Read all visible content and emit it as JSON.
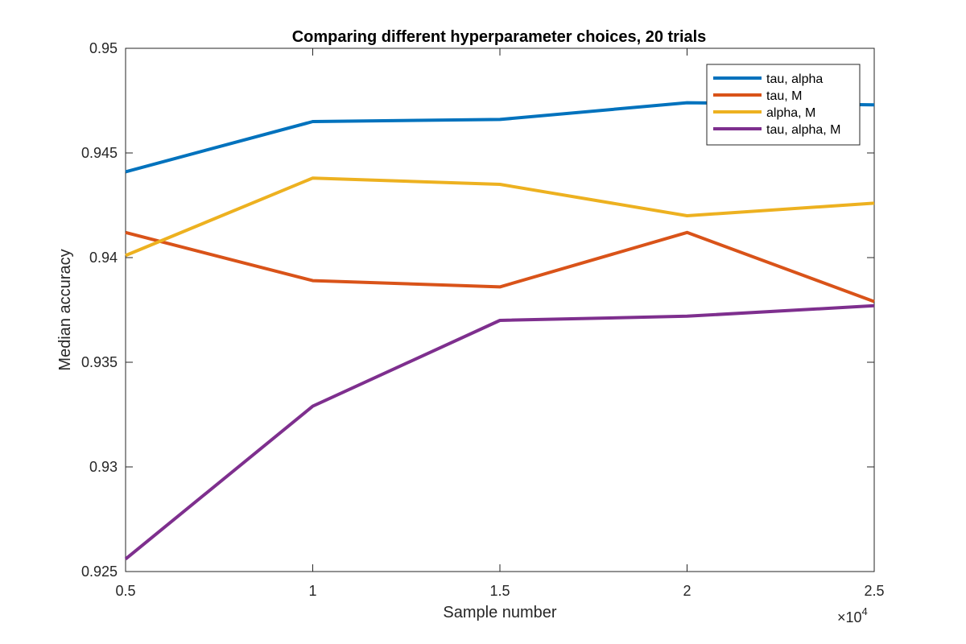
{
  "chart_data": {
    "type": "line",
    "title": "Comparing different hyperparameter choices, 20 trials",
    "xlabel": "Sample number",
    "ylabel": "Median accuracy",
    "x": [
      5000,
      10000,
      15000,
      20000,
      25000
    ],
    "xlim": [
      5000,
      25000
    ],
    "ylim": [
      0.925,
      0.95
    ],
    "x_ticks": [
      5000,
      10000,
      15000,
      20000,
      25000
    ],
    "x_tick_labels": [
      "0.5",
      "1",
      "1.5",
      "2",
      "2.5"
    ],
    "x_exponent_label": {
      "base": "×10",
      "power": "4"
    },
    "y_ticks": [
      0.925,
      0.93,
      0.935,
      0.94,
      0.945,
      0.95
    ],
    "y_tick_labels": [
      "0.925",
      "0.93",
      "0.935",
      "0.94",
      "0.945",
      "0.95"
    ],
    "grid": false,
    "legend_position": "top-right",
    "series": [
      {
        "name": "tau, alpha",
        "color": "#0072BD",
        "values": [
          0.9441,
          0.9465,
          0.9466,
          0.9474,
          0.9473
        ]
      },
      {
        "name": "tau, M",
        "color": "#D95319",
        "values": [
          0.9412,
          0.9389,
          0.9386,
          0.9412,
          0.9379
        ]
      },
      {
        "name": "alpha, M",
        "color": "#EDB120",
        "values": [
          0.9401,
          0.9438,
          0.9435,
          0.942,
          0.9426
        ]
      },
      {
        "name": "tau, alpha, M",
        "color": "#7E2F8E",
        "values": [
          0.9256,
          0.9329,
          0.937,
          0.9372,
          0.9377
        ]
      }
    ]
  }
}
